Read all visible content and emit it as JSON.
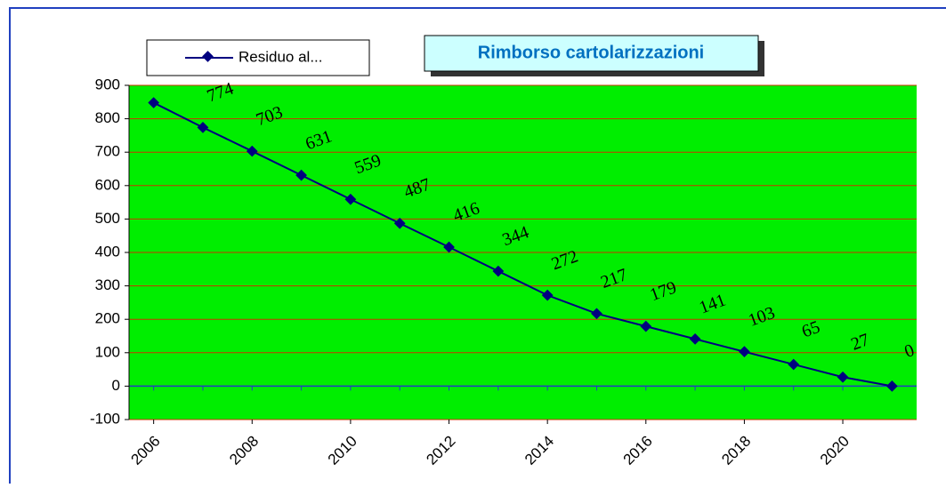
{
  "chart_data": {
    "type": "line",
    "title": "Rimborso cartolarizzazioni",
    "x": [
      2006,
      2007,
      2008,
      2009,
      2010,
      2011,
      2012,
      2013,
      2014,
      2015,
      2016,
      2017,
      2018,
      2019,
      2020,
      2021
    ],
    "series": [
      {
        "name": "Residuo al...",
        "color": "#000080",
        "values": [
          848,
          774,
          703,
          631,
          559,
          487,
          416,
          344,
          272,
          217,
          179,
          141,
          103,
          65,
          27,
          0
        ]
      }
    ],
    "value_labels": [
      null,
      "774",
      "703",
      "631",
      "559",
      "487",
      "416",
      "344",
      "272",
      "217",
      "179",
      "141",
      "103",
      "65",
      "27",
      "0"
    ],
    "xlim": [
      2005.5,
      2021.5
    ],
    "xticks": [
      2006,
      2008,
      2010,
      2012,
      2014,
      2016,
      2018,
      2020
    ],
    "ylim": [
      -100,
      900
    ],
    "yticks": [
      -100,
      0,
      100,
      200,
      300,
      400,
      500,
      600,
      700,
      800,
      900
    ],
    "grid": true,
    "plot_color": "#00ee00",
    "grid_color": "#cc3300"
  }
}
